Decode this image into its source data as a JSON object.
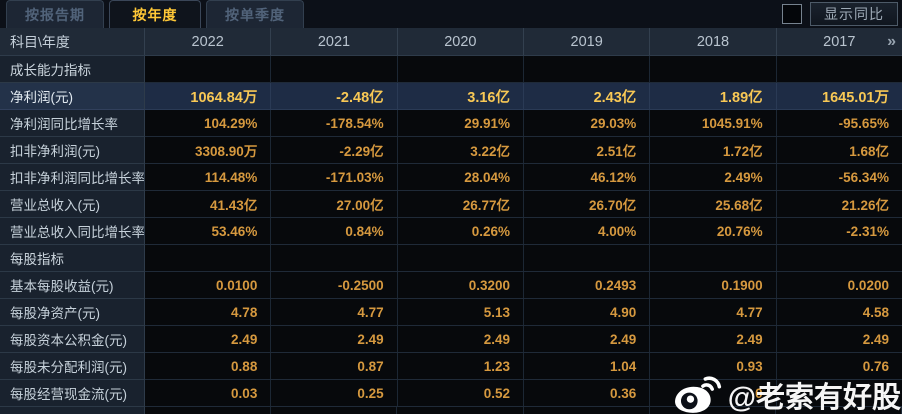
{
  "tabs": {
    "report_period": "按报告期",
    "annual": "按年度",
    "quarterly": "按单季度",
    "active": "annual"
  },
  "controls": {
    "show_yoy_label": "显示同比"
  },
  "table": {
    "corner_label": "科目\\年度",
    "year_columns": [
      "2022",
      "2021",
      "2020",
      "2019",
      "2018",
      "2017"
    ],
    "more_columns_icon": "»",
    "rows": [
      {
        "type": "section",
        "label": "成长能力指标",
        "values": [
          "",
          "",
          "",
          "",
          "",
          ""
        ]
      },
      {
        "type": "data",
        "label": "净利润(元)",
        "highlight": true,
        "values": [
          "1064.84万",
          "-2.48亿",
          "3.16亿",
          "2.43亿",
          "1.89亿",
          "1645.01万"
        ]
      },
      {
        "type": "data",
        "label": "净利润同比增长率",
        "values": [
          "104.29%",
          "-178.54%",
          "29.91%",
          "29.03%",
          "1045.91%",
          "-95.65%"
        ]
      },
      {
        "type": "data",
        "label": "扣非净利润(元)",
        "values": [
          "3308.90万",
          "-2.29亿",
          "3.22亿",
          "2.51亿",
          "1.72亿",
          "1.68亿"
        ]
      },
      {
        "type": "data",
        "label": "扣非净利润同比增长率",
        "values": [
          "114.48%",
          "-171.03%",
          "28.04%",
          "46.12%",
          "2.49%",
          "-56.34%"
        ]
      },
      {
        "type": "data",
        "label": "营业总收入(元)",
        "values": [
          "41.43亿",
          "27.00亿",
          "26.77亿",
          "26.70亿",
          "25.68亿",
          "21.26亿"
        ]
      },
      {
        "type": "data",
        "label": "营业总收入同比增长率",
        "values": [
          "53.46%",
          "0.84%",
          "0.26%",
          "4.00%",
          "20.76%",
          "-2.31%"
        ]
      },
      {
        "type": "section",
        "label": "每股指标",
        "values": [
          "",
          "",
          "",
          "",
          "",
          ""
        ]
      },
      {
        "type": "data",
        "label": "基本每股收益(元)",
        "values": [
          "0.0100",
          "-0.2500",
          "0.3200",
          "0.2493",
          "0.1900",
          "0.0200"
        ]
      },
      {
        "type": "data",
        "label": "每股净资产(元)",
        "values": [
          "4.78",
          "4.77",
          "5.13",
          "4.90",
          "4.77",
          "4.58"
        ]
      },
      {
        "type": "data",
        "label": "每股资本公积金(元)",
        "values": [
          "2.49",
          "2.49",
          "2.49",
          "2.49",
          "2.49",
          "2.49"
        ]
      },
      {
        "type": "data",
        "label": "每股未分配利润(元)",
        "values": [
          "0.88",
          "0.87",
          "1.23",
          "1.04",
          "0.93",
          "0.76"
        ]
      },
      {
        "type": "data",
        "label": "每股经营现金流(元)",
        "values": [
          "0.03",
          "0.25",
          "0.52",
          "0.36",
          "0",
          ""
        ]
      }
    ]
  },
  "watermark": {
    "text": "@老索有好股"
  },
  "colors": {
    "accent_gold": "#ffc837",
    "value_orange": "#d6993f",
    "highlight_value_gold": "#f8c855",
    "highlight_row_bg": "#1e2c45",
    "header_bg": "#202a37",
    "label_col_bg": "#19222e",
    "cell_bg": "#07090c",
    "page_bg": "#0c1018"
  }
}
